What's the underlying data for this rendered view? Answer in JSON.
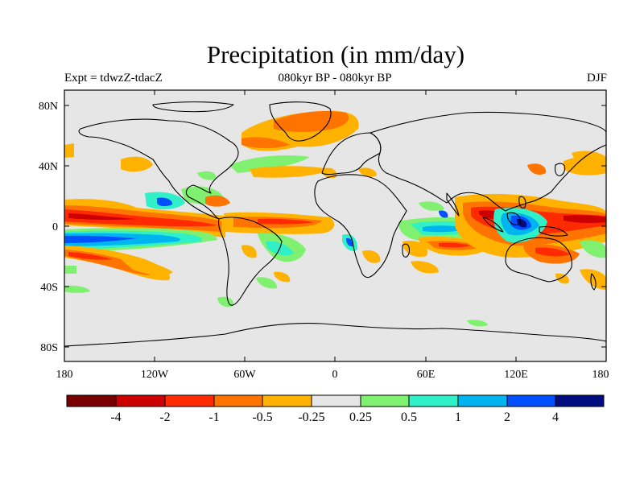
{
  "title": "Precipitation (in mm/day)",
  "subtitle_left": "Expt = tdwzZ-tdacZ",
  "subtitle_center": "080kyr BP - 080kyr BP",
  "subtitle_right": "DJF",
  "map": {
    "lat_ticks": [
      "80N",
      "40N",
      "0",
      "40S",
      "80S"
    ],
    "lon_ticks": [
      "180",
      "120W",
      "60W",
      "0",
      "60E",
      "120E",
      "180"
    ],
    "ocean_fill": "#e6e6e6"
  },
  "colorbar": {
    "colors": [
      "#7a0000",
      "#cc0000",
      "#ff2a00",
      "#ff7300",
      "#ffb300",
      "#e6e6e6",
      "#80f070",
      "#30f0c8",
      "#00b4f0",
      "#0050ff",
      "#000c80"
    ],
    "labels": [
      "-4",
      "-2",
      "-1",
      "-0.5",
      "-0.25",
      "0.25",
      "0.5",
      "1",
      "2",
      "4"
    ]
  }
}
